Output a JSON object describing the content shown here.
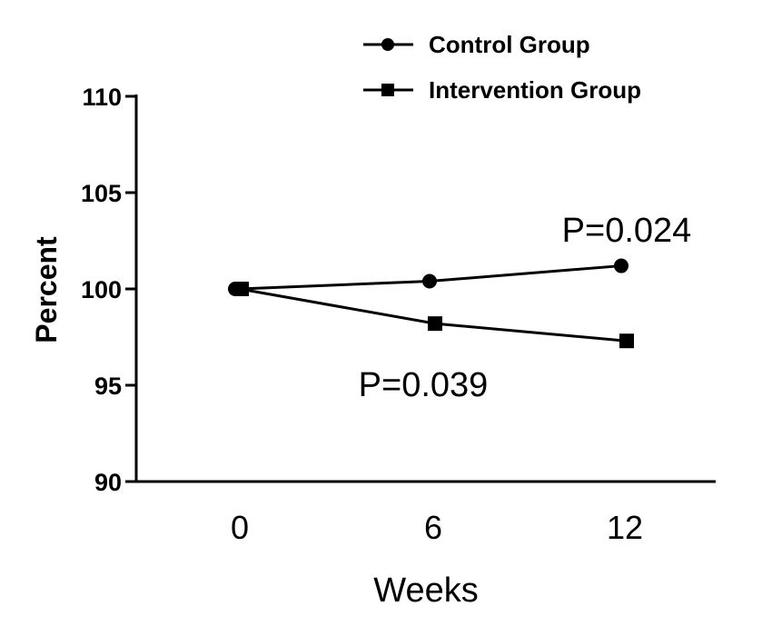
{
  "chart_data": {
    "type": "line",
    "x": [
      0,
      6,
      12
    ],
    "x_tick_labels": [
      "0",
      "6",
      "12"
    ],
    "y_ticks": [
      90,
      95,
      100,
      105,
      110
    ],
    "ylim": [
      90,
      110
    ],
    "xlabel": "Weeks",
    "ylabel": "Percent",
    "title": "",
    "grid": false,
    "legend_position": "top-right",
    "series": [
      {
        "name": "Control Group",
        "marker": "circle",
        "color": "#000000",
        "values": [
          100,
          100.4,
          101.2
        ]
      },
      {
        "name": "Intervention Group",
        "marker": "square",
        "color": "#000000",
        "values": [
          100,
          98.2,
          97.3
        ]
      }
    ],
    "annotations": [
      {
        "text": "P=0.024",
        "series": "Control Group",
        "x": 12
      },
      {
        "text": "P=0.039",
        "series": "Intervention Group",
        "x": 6
      }
    ]
  }
}
